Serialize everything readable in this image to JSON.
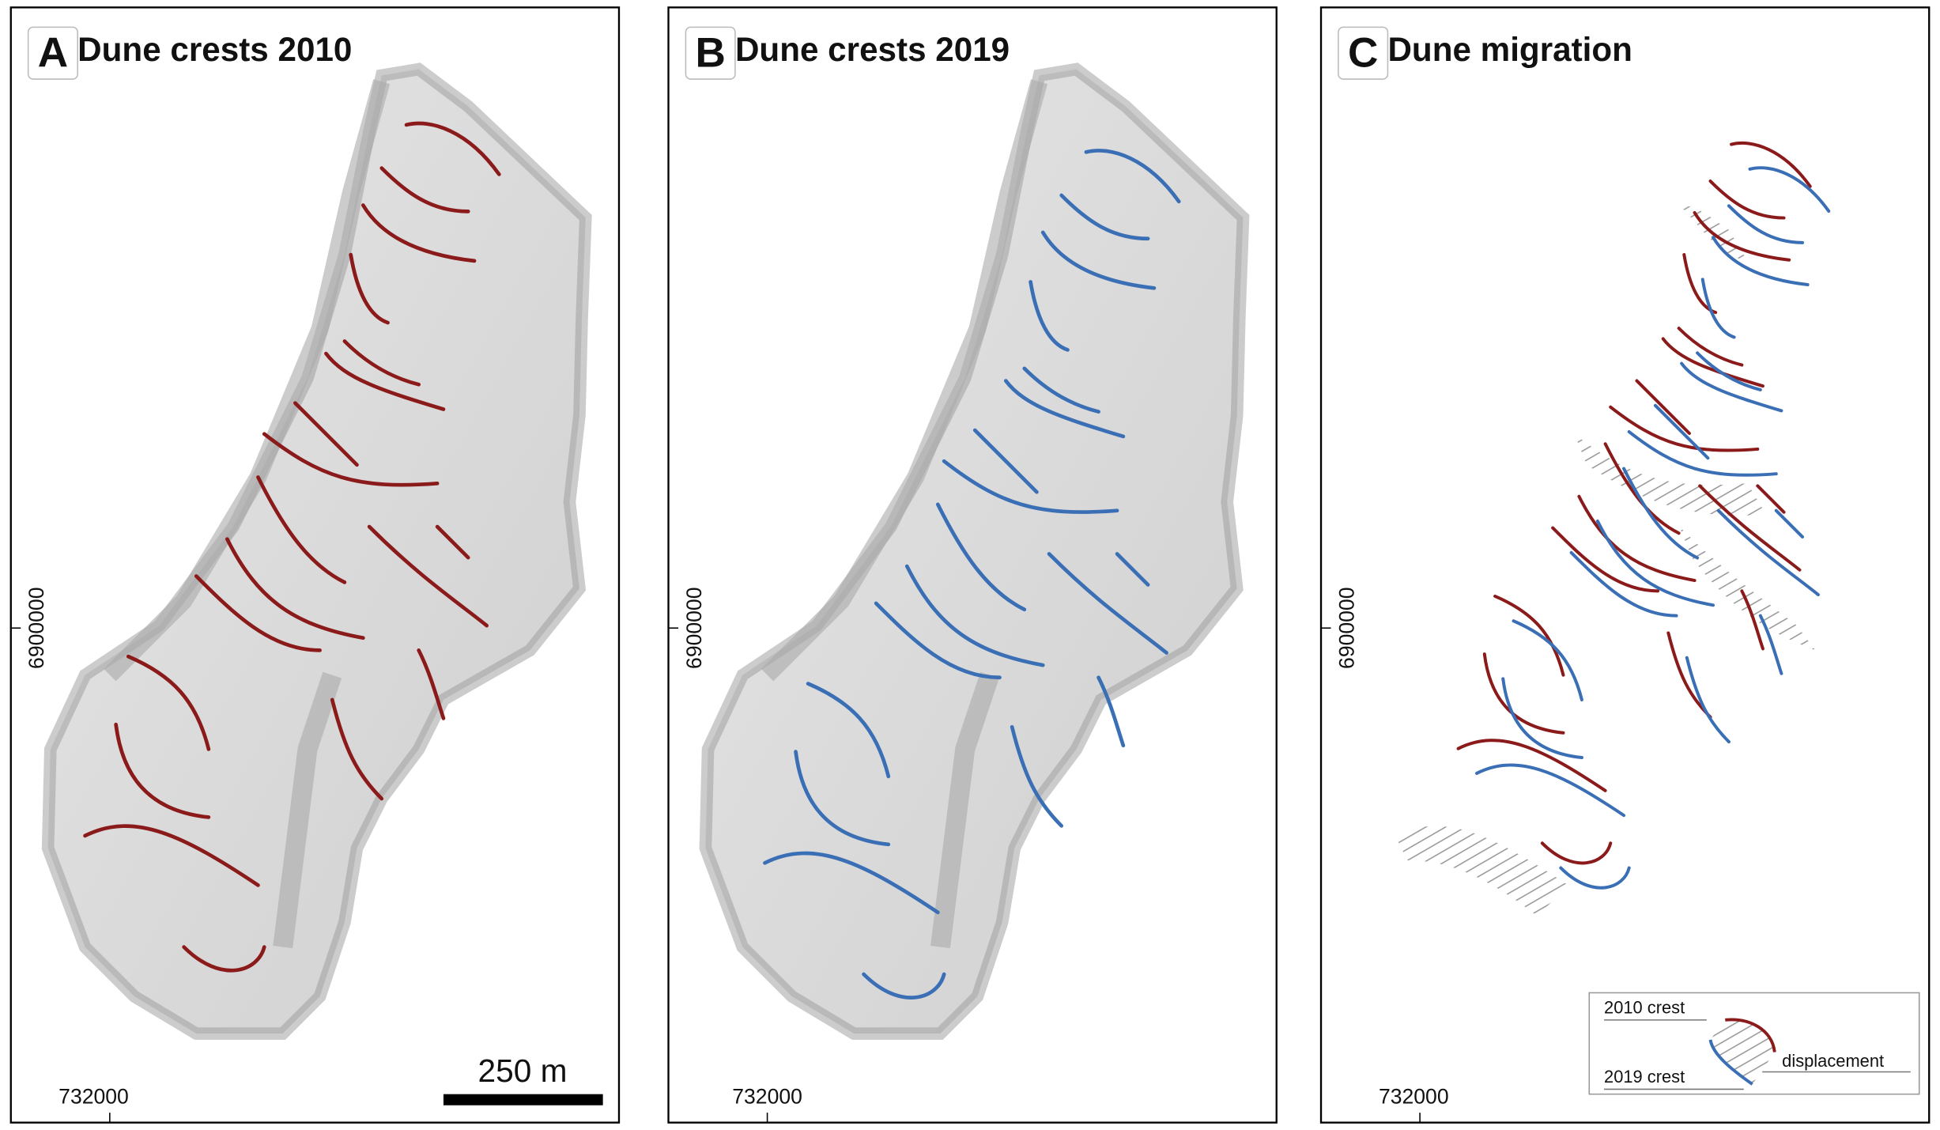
{
  "panels": [
    {
      "letter": "A",
      "title": "Dune crests 2010",
      "y_coord": "6900000",
      "x_coord": "732000"
    },
    {
      "letter": "B",
      "title": "Dune crests 2019",
      "y_coord": "6900000",
      "x_coord": "732000"
    },
    {
      "letter": "C",
      "title": "Dune migration",
      "y_coord": "6900000",
      "x_coord": "732000"
    }
  ],
  "scale_bar": "250 m",
  "legend": {
    "crest_2010": "2010 crest",
    "crest_2019": "2019 crest",
    "displacement": "displacement"
  }
}
